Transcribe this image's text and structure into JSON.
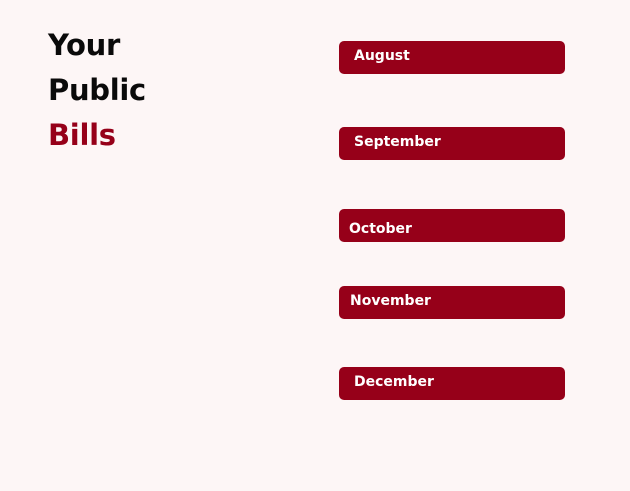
{
  "heading": {
    "line1": "Your",
    "line2": "Public",
    "line3": "Bills"
  },
  "colors": {
    "accent": "#960019",
    "background": "#fdf6f6",
    "text_dark": "#0a0a0a",
    "button_text": "#ffffff"
  },
  "months": {
    "august": "August",
    "september": "September",
    "october": "October",
    "november": "November",
    "december": "December"
  }
}
